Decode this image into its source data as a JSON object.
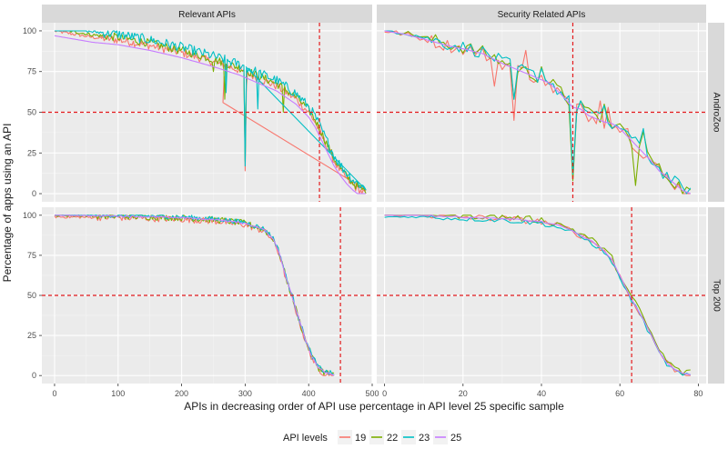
{
  "chart_data": {
    "type": "line",
    "y_label": "Percentage of apps using an API",
    "x_label": "APIs in decreasing order of API use percentage in API level 25 specific sample",
    "legend": {
      "title": "API levels",
      "position": "bottom",
      "entries": [
        {
          "name": "19",
          "color": "#f8766d"
        },
        {
          "name": "22",
          "color": "#7cae00"
        },
        {
          "name": "23",
          "color": "#00bfc4"
        },
        {
          "name": "25",
          "color": "#c77cff"
        }
      ]
    },
    "columns": [
      {
        "label": "Relevant APIs",
        "xlim": [
          -20,
          500
        ],
        "xticks": [
          0,
          100,
          200,
          300,
          400,
          500
        ]
      },
      {
        "label": "Security Related APIs",
        "xlim": [
          -2,
          82
        ],
        "xticks": [
          0,
          20,
          40,
          60,
          80
        ]
      }
    ],
    "rows": [
      {
        "label": "AndroZoo"
      },
      {
        "label": "Top 200"
      }
    ],
    "ylim": [
      -5,
      105
    ],
    "yticks": [
      0,
      25,
      50,
      75,
      100
    ],
    "grid": true,
    "reference_lines": {
      "y": 50,
      "color": "#e41a1c",
      "style": "dashed"
    },
    "panels": [
      {
        "row": "AndroZoo",
        "column": "Relevant APIs",
        "vline_x": 417,
        "base": [
          [
            0,
            100
          ],
          [
            30,
            98
          ],
          [
            60,
            96
          ],
          [
            100,
            94.5
          ],
          [
            150,
            91
          ],
          [
            200,
            86.5
          ],
          [
            250,
            81
          ],
          [
            290,
            76
          ],
          [
            320,
            71
          ],
          [
            350,
            66
          ],
          [
            380,
            58
          ],
          [
            400,
            50
          ],
          [
            410,
            44
          ],
          [
            420,
            36
          ],
          [
            430,
            28
          ],
          [
            440,
            20
          ],
          [
            450,
            14
          ],
          [
            460,
            9
          ],
          [
            470,
            5
          ],
          [
            480,
            2
          ],
          [
            490,
            0
          ]
        ],
        "series": [
          {
            "name": "19",
            "offset": 0,
            "noise": 2.5,
            "drops": [
              [
                265,
                56
              ],
              [
                267,
                72
              ],
              [
                300,
                14
              ],
              [
                302,
                66
              ]
            ]
          },
          {
            "name": "22",
            "offset": 1.5,
            "noise": 2.5,
            "drops": [
              [
                250,
                75
              ],
              [
                268,
                58
              ],
              [
                300,
                20
              ],
              [
                360,
                50
              ]
            ]
          },
          {
            "name": "23",
            "offset": 3.5,
            "noise": 3,
            "drops": [
              [
                270,
                62
              ],
              [
                300,
                17
              ],
              [
                301,
                78
              ],
              [
                320,
                52
              ]
            ]
          },
          {
            "name": "25",
            "offset": -3,
            "noise": 0,
            "drops": []
          }
        ]
      },
      {
        "row": "AndroZoo",
        "column": "Security Related APIs",
        "vline_x": 48,
        "base": [
          [
            0,
            100
          ],
          [
            5,
            98
          ],
          [
            10,
            95
          ],
          [
            16,
            91
          ],
          [
            20,
            89
          ],
          [
            25,
            86
          ],
          [
            30,
            80
          ],
          [
            34,
            76
          ],
          [
            38,
            72
          ],
          [
            42,
            68
          ],
          [
            45,
            61
          ],
          [
            48,
            53
          ],
          [
            50,
            52
          ],
          [
            52,
            48
          ],
          [
            54,
            46
          ],
          [
            56,
            44
          ],
          [
            58,
            43
          ],
          [
            60,
            40
          ],
          [
            64,
            30
          ],
          [
            68,
            20
          ],
          [
            70,
            14
          ],
          [
            72,
            10
          ],
          [
            74,
            6
          ],
          [
            76,
            2
          ],
          [
            78,
            0
          ]
        ],
        "series": [
          {
            "name": "19",
            "offset": 0,
            "noise": 4,
            "drops": [
              [
                28,
                66
              ],
              [
                33,
                45
              ],
              [
                36,
                88
              ],
              [
                43,
                62
              ],
              [
                48,
                9
              ],
              [
                49,
                55
              ],
              [
                55,
                57
              ],
              [
                57,
                53
              ],
              [
                62,
                40
              ]
            ]
          },
          {
            "name": "22",
            "offset": 1,
            "noise": 4,
            "drops": [
              [
                33,
                58
              ],
              [
                40,
                78
              ],
              [
                48,
                8
              ],
              [
                50,
                57
              ],
              [
                56,
                55
              ],
              [
                58,
                40
              ],
              [
                62,
                36
              ],
              [
                64,
                5
              ],
              [
                66,
                38
              ]
            ]
          },
          {
            "name": "23",
            "offset": 1,
            "noise": 4,
            "drops": [
              [
                33,
                58
              ],
              [
                40,
                77
              ],
              [
                48,
                12
              ],
              [
                50,
                57
              ],
              [
                56,
                54
              ],
              [
                58,
                40
              ],
              [
                62,
                38
              ],
              [
                66,
                40
              ]
            ]
          },
          {
            "name": "25",
            "offset": 0,
            "noise": 0,
            "drops": []
          }
        ]
      },
      {
        "row": "Top 200",
        "column": "Relevant APIs",
        "vline_x": 450,
        "base": [
          [
            0,
            100
          ],
          [
            100,
            99.5
          ],
          [
            200,
            98.5
          ],
          [
            260,
            97
          ],
          [
            300,
            95
          ],
          [
            330,
            91
          ],
          [
            345,
            85
          ],
          [
            355,
            75
          ],
          [
            365,
            60
          ],
          [
            375,
            48
          ],
          [
            385,
            35
          ],
          [
            395,
            22
          ],
          [
            405,
            12
          ],
          [
            415,
            5
          ],
          [
            425,
            2
          ],
          [
            435,
            1
          ],
          [
            440,
            0
          ]
        ],
        "series": [
          {
            "name": "19",
            "offset": -1,
            "noise": 2,
            "drops": []
          },
          {
            "name": "22",
            "offset": 0,
            "noise": 2,
            "drops": []
          },
          {
            "name": "23",
            "offset": 0.5,
            "noise": 1.5,
            "drops": []
          },
          {
            "name": "25",
            "offset": 0,
            "noise": 0.5,
            "drops": []
          }
        ]
      },
      {
        "row": "Top 200",
        "column": "Security Related APIs",
        "vline_x": 63,
        "base": [
          [
            0,
            100
          ],
          [
            10,
            100
          ],
          [
            18,
            99
          ],
          [
            30,
            98
          ],
          [
            40,
            96
          ],
          [
            45,
            93
          ],
          [
            48,
            90
          ],
          [
            52,
            85
          ],
          [
            55,
            80
          ],
          [
            58,
            72
          ],
          [
            60,
            62
          ],
          [
            62,
            52
          ],
          [
            64,
            44
          ],
          [
            66,
            35
          ],
          [
            68,
            25
          ],
          [
            70,
            15
          ],
          [
            72,
            8
          ],
          [
            74,
            4
          ],
          [
            76,
            1
          ],
          [
            78,
            1
          ]
        ],
        "series": [
          {
            "name": "19",
            "offset": 0,
            "noise": 2,
            "drops": []
          },
          {
            "name": "22",
            "offset": 1,
            "noise": 2,
            "drops": []
          },
          {
            "name": "23",
            "offset": -1,
            "noise": 1.5,
            "drops": []
          },
          {
            "name": "25",
            "offset": 0,
            "noise": 0.5,
            "drops": []
          }
        ]
      }
    ]
  }
}
